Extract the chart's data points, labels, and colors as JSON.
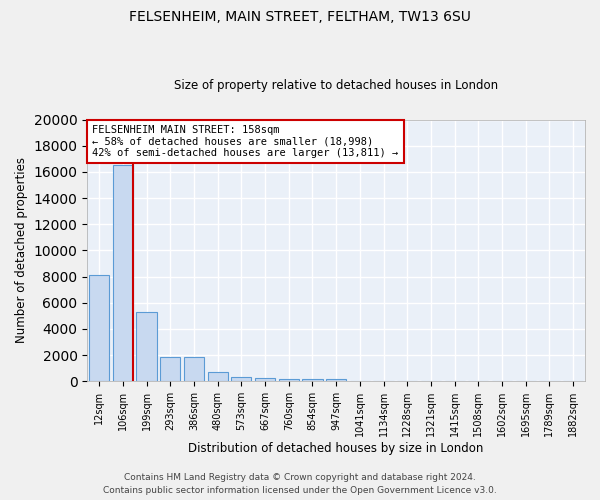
{
  "title1": "FELSENHEIM, MAIN STREET, FELTHAM, TW13 6SU",
  "title2": "Size of property relative to detached houses in London",
  "xlabel": "Distribution of detached houses by size in London",
  "ylabel": "Number of detached properties",
  "categories": [
    "12sqm",
    "106sqm",
    "199sqm",
    "293sqm",
    "386sqm",
    "480sqm",
    "573sqm",
    "667sqm",
    "760sqm",
    "854sqm",
    "947sqm",
    "1041sqm",
    "1134sqm",
    "1228sqm",
    "1321sqm",
    "1415sqm",
    "1508sqm",
    "1602sqm",
    "1695sqm",
    "1789sqm",
    "1882sqm"
  ],
  "values": [
    8100,
    16500,
    5300,
    1850,
    1850,
    700,
    350,
    250,
    200,
    175,
    150,
    50,
    50,
    50,
    50,
    30,
    20,
    15,
    10,
    5,
    2
  ],
  "bar_color": "#c8d9f0",
  "bar_edge_color": "#5b9bd5",
  "background_color": "#eaf0f8",
  "grid_color": "#ffffff",
  "annotation_text": "FELSENHEIM MAIN STREET: 158sqm\n← 58% of detached houses are smaller (18,998)\n42% of semi-detached houses are larger (13,811) →",
  "annotation_box_color": "#ffffff",
  "annotation_box_edge": "#cc0000",
  "red_line_x": 1.45,
  "ylim": [
    0,
    20000
  ],
  "yticks": [
    0,
    2000,
    4000,
    6000,
    8000,
    10000,
    12000,
    14000,
    16000,
    18000,
    20000
  ],
  "footer1": "Contains HM Land Registry data © Crown copyright and database right 2024.",
  "footer2": "Contains public sector information licensed under the Open Government Licence v3.0.",
  "fig_facecolor": "#f0f0f0"
}
